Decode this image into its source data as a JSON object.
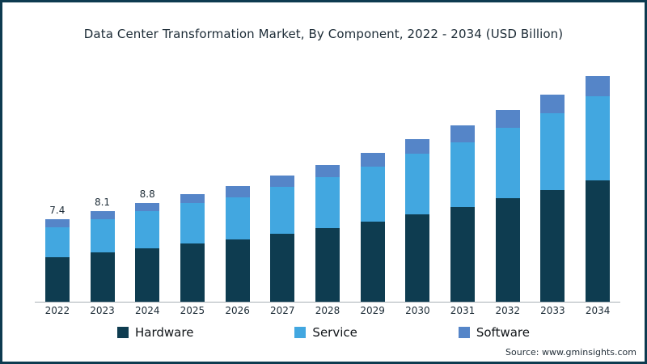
{
  "title": "Data Center Transformation Market, By Component, 2022 - 2034 (USD Billion)",
  "source": "Source: www.gminsights.com",
  "chart_data": {
    "type": "bar",
    "stacked": true,
    "title": "Data Center Transformation Market, By Component, 2022 - 2034 (USD Billion)",
    "xlabel": "",
    "ylabel": "",
    "grid": false,
    "legend_position": "bottom",
    "categories": [
      "2022",
      "2023",
      "2024",
      "2025",
      "2026",
      "2027",
      "2028",
      "2029",
      "2030",
      "2031",
      "2032",
      "2033",
      "2034"
    ],
    "series": [
      {
        "name": "Hardware",
        "color": "#0e3c50",
        "values": [
          4.0,
          4.4,
          4.8,
          5.2,
          5.6,
          6.1,
          6.6,
          7.2,
          7.8,
          8.5,
          9.3,
          10.0,
          10.9
        ]
      },
      {
        "name": "Service",
        "color": "#42a7e0",
        "values": [
          2.7,
          3.0,
          3.3,
          3.6,
          3.8,
          4.2,
          4.6,
          4.9,
          5.4,
          5.8,
          6.3,
          6.9,
          7.5
        ]
      },
      {
        "name": "Software",
        "color": "#5585c8",
        "values": [
          0.7,
          0.7,
          0.7,
          0.8,
          1.0,
          1.0,
          1.1,
          1.2,
          1.3,
          1.5,
          1.6,
          1.7,
          1.8
        ]
      }
    ],
    "totals": [
      7.4,
      8.1,
      8.8,
      9.6,
      10.4,
      11.3,
      12.3,
      13.3,
      14.5,
      15.8,
      17.2,
      18.6,
      20.2
    ],
    "data_labels": [
      "7.4",
      "8.1",
      "8.8",
      "",
      "",
      "",
      "",
      "",
      "",
      "",
      "",
      "",
      ""
    ],
    "ylim": [
      0,
      21
    ]
  }
}
